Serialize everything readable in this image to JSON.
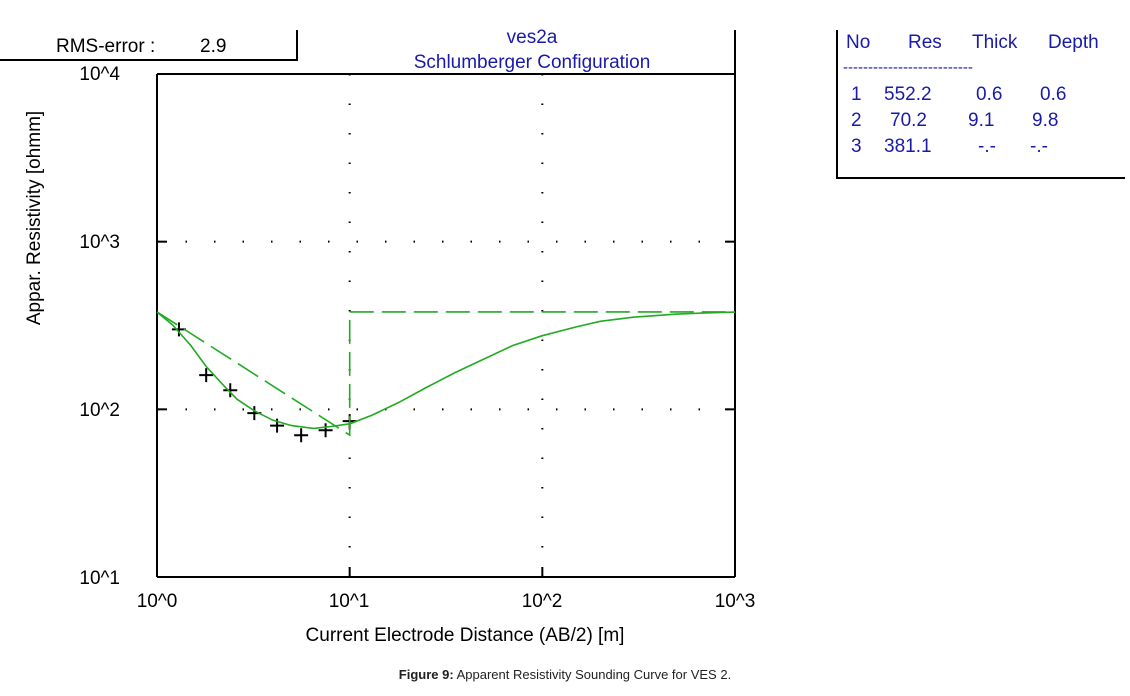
{
  "chart_data": {
    "type": "line",
    "title": "ves2a",
    "subtitle": "Schlumberger Configuration",
    "rms_label": "RMS-error :",
    "rms_value": "2.9",
    "xlabel": "Current Electrode Distance (AB/2) [m]",
    "ylabel": "Appar. Resistivity [ohmm]",
    "xscale": "log",
    "yscale": "log",
    "xlim": [
      1,
      1000
    ],
    "ylim": [
      10,
      10000
    ],
    "x_ticks": [
      "10^0",
      "10^1",
      "10^2",
      "10^3"
    ],
    "y_ticks": [
      "10^1",
      "10^2",
      "10^3",
      "10^4"
    ],
    "grid": "dotted",
    "series": [
      {
        "name": "observed",
        "style": "cross-markers",
        "x": [
          1.3,
          1.8,
          2.4,
          3.2,
          4.2,
          5.6,
          7.5,
          10.0
        ],
        "y": [
          300,
          160,
          130,
          95,
          80,
          70,
          75,
          85
        ]
      },
      {
        "name": "calculated",
        "style": "solid",
        "x": [
          1.0,
          1.2,
          1.5,
          1.8,
          2.2,
          2.6,
          3.2,
          4.0,
          5.0,
          6.5,
          8.0,
          10.0,
          13,
          18,
          25,
          35,
          50,
          70,
          100,
          150,
          200,
          300,
          500,
          700,
          1000
        ],
        "y": [
          380,
          320,
          240,
          180,
          140,
          115,
          98,
          86,
          80,
          77,
          79,
          82,
          92,
          110,
          135,
          165,
          200,
          240,
          275,
          310,
          335,
          355,
          370,
          376,
          380
        ]
      },
      {
        "name": "layer-model",
        "style": "dashed",
        "x": [
          1.0,
          10.0,
          10.0,
          1000
        ],
        "y": [
          381.1,
          70.2,
          381.1,
          381.1
        ]
      }
    ],
    "colors": {
      "curve": "#22aa22",
      "text_blue": "#1a1aaa",
      "axes": "#000000"
    }
  },
  "layer_table": {
    "headers": [
      "No",
      "Res",
      "Thick",
      "Depth"
    ],
    "separator": "--------------------------",
    "rows": [
      [
        "1",
        "552.2",
        "0.6",
        "0.6"
      ],
      [
        "2",
        "70.2",
        "9.1",
        "9.8"
      ],
      [
        "3",
        "381.1",
        "-.-",
        "-.-"
      ]
    ]
  },
  "caption": {
    "label": "Figure 9:",
    "text": " Apparent Resistivity Sounding Curve for VES 2."
  }
}
